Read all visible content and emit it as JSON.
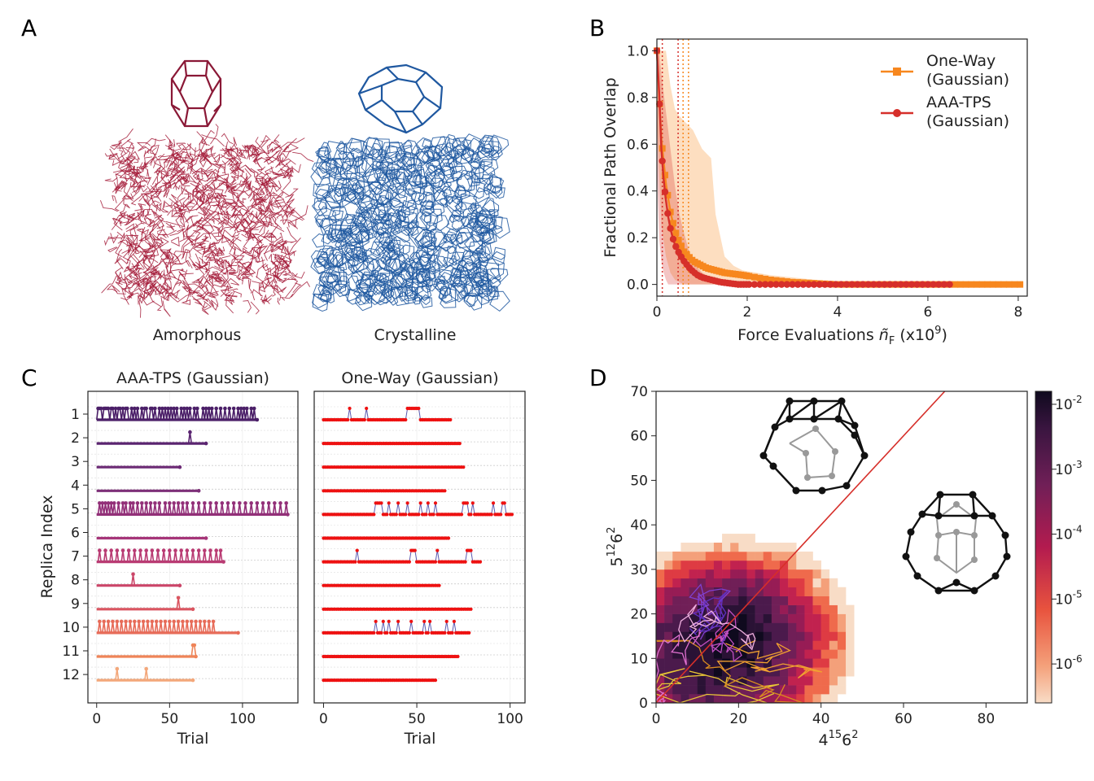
{
  "panels": {
    "A": "A",
    "B": "B",
    "C": "C",
    "D": "D"
  },
  "colors": {
    "amorphous": "#a51c3a",
    "crystalline": "#1f58a0",
    "oneway": "#f7871e",
    "aaa": "#d62f2a",
    "line": "#d62f2a",
    "red_dots": "#ee1111"
  },
  "chart_data": [
    {
      "id": "A",
      "type": "other",
      "labels": {
        "left": "Amorphous",
        "right": "Crystalline"
      }
    },
    {
      "id": "B",
      "type": "line",
      "xlabel_main": "Force Evaluations ",
      "xlabel_sym": "ñ",
      "xlabel_sub": "F",
      "xlabel_unit": " (x10",
      "xlabel_exp": "9",
      "xlabel_close": ")",
      "ylabel": "Fractional Path Overlap",
      "xlim": [
        0,
        8.2
      ],
      "ylim": [
        -0.05,
        1.05
      ],
      "xticks": [
        0,
        2,
        4,
        6,
        8
      ],
      "yticks": [
        0.0,
        0.2,
        0.4,
        0.6,
        0.8,
        1.0
      ],
      "vlines": [
        {
          "x": 0.12,
          "series": "aaa"
        },
        {
          "x": 0.47,
          "series": "aaa"
        },
        {
          "x": 0.58,
          "series": "oneway"
        },
        {
          "x": 0.7,
          "series": "oneway"
        }
      ],
      "series": [
        {
          "key": "oneway",
          "name_line1": "One-Way",
          "name_line2": "(Gaussian)",
          "marker": "square",
          "x": [
            0,
            0.1,
            0.2,
            0.3,
            0.4,
            0.5,
            0.6,
            0.7,
            0.8,
            0.9,
            1.0,
            1.1,
            1.2,
            1.3,
            1.5,
            1.7,
            1.9,
            2.2,
            2.5,
            3.0,
            3.5,
            4,
            5,
            6,
            7,
            8.1
          ],
          "y": [
            1.0,
            0.62,
            0.43,
            0.31,
            0.23,
            0.18,
            0.14,
            0.12,
            0.1,
            0.09,
            0.08,
            0.07,
            0.065,
            0.06,
            0.05,
            0.045,
            0.04,
            0.03,
            0.02,
            0.01,
            0.005,
            0.0,
            0.0,
            0.0,
            0.0,
            0.0
          ],
          "band_upper": [
            1.0,
            1.0,
            1.0,
            0.85,
            0.75,
            0.72,
            0.7,
            0.68,
            0.66,
            0.62,
            0.58,
            0.56,
            0.54,
            0.3,
            0.12,
            0.08,
            0.06,
            0.05,
            0.04,
            0.03,
            0.02,
            0.01,
            0.0,
            0.0,
            0.0,
            0.0
          ],
          "band_lower": [
            0.7,
            0.25,
            0.12,
            0.05,
            0.02,
            0.01,
            0,
            0,
            0,
            0,
            0,
            0,
            0,
            0,
            0,
            0,
            0,
            0,
            0,
            0,
            0,
            0,
            0,
            0,
            0,
            0
          ]
        },
        {
          "key": "aaa",
          "name_line1": "AAA-TPS",
          "name_line2": "(Gaussian)",
          "marker": "circle",
          "x": [
            0,
            0.05,
            0.1,
            0.15,
            0.2,
            0.25,
            0.3,
            0.35,
            0.4,
            0.45,
            0.5,
            0.6,
            0.7,
            0.8,
            0.9,
            1.0,
            1.2,
            1.4,
            1.6,
            1.8,
            2.0,
            2.5,
            3,
            4,
            5,
            6.5
          ],
          "y": [
            1.0,
            0.82,
            0.58,
            0.45,
            0.36,
            0.29,
            0.24,
            0.2,
            0.17,
            0.15,
            0.13,
            0.1,
            0.075,
            0.055,
            0.04,
            0.03,
            0.02,
            0.01,
            0.005,
            0.0,
            0.0,
            0.0,
            0.0,
            0.0,
            0.0,
            0.0
          ],
          "band_upper": [
            1.0,
            1.0,
            0.9,
            0.82,
            0.74,
            0.66,
            0.58,
            0.5,
            0.42,
            0.36,
            0.3,
            0.22,
            0.15,
            0.1,
            0.07,
            0.05,
            0.03,
            0.02,
            0.01,
            0.0,
            0,
            0,
            0,
            0,
            0,
            0
          ],
          "band_lower": [
            0.5,
            0.2,
            0.1,
            0.05,
            0.02,
            0.0,
            0,
            0,
            0,
            0,
            0,
            0,
            0,
            0,
            0,
            0,
            0,
            0,
            0,
            0,
            0,
            0,
            0,
            0,
            0,
            0
          ]
        }
      ]
    },
    {
      "id": "C",
      "type": "scatter",
      "ylabel": "Replica Index",
      "xlabel": "Trial",
      "replicas": [
        "1",
        "2",
        "3",
        "4",
        "5",
        "6",
        "7",
        "8",
        "9",
        "10",
        "11",
        "12"
      ],
      "left": {
        "title": "AAA-TPS (Gaussian)",
        "xlim": [
          -6,
          138
        ],
        "xticks": [
          0,
          50,
          100
        ],
        "lengths": [
          110,
          75,
          57,
          70,
          131,
          75,
          87,
          57,
          66,
          97,
          68,
          66
        ],
        "spikes": [
          [
            1,
            2,
            3,
            5,
            6,
            7,
            8,
            10,
            11,
            13,
            15,
            16,
            18,
            20,
            21,
            24,
            26,
            28,
            31,
            33,
            34,
            37,
            38,
            40,
            43,
            45,
            47,
            49,
            51,
            53,
            55,
            58,
            60,
            62,
            64,
            67,
            69,
            73,
            75,
            77,
            79,
            82,
            85,
            88,
            91,
            94,
            97,
            99,
            101,
            103,
            106,
            108
          ],
          [
            64
          ],
          [],
          [],
          [
            2,
            4,
            6,
            8,
            10,
            12,
            15,
            18,
            20,
            23,
            25,
            28,
            31,
            34,
            37,
            40,
            43,
            47,
            50,
            53,
            56,
            59,
            62,
            66,
            70,
            74,
            78,
            82,
            86,
            90,
            94,
            98,
            102,
            106,
            110,
            114,
            118,
            122,
            126,
            130
          ],
          [],
          [
            2,
            6,
            10,
            14,
            18,
            22,
            26,
            30,
            34,
            38,
            42,
            46,
            50,
            54,
            58,
            62,
            66,
            70,
            74,
            78,
            82,
            85
          ],
          [
            25
          ],
          [
            56
          ],
          [
            2,
            5,
            8,
            11,
            14,
            17,
            20,
            23,
            26,
            29,
            32,
            35,
            38,
            41,
            44,
            47,
            50,
            53,
            56,
            59,
            62,
            65,
            68,
            71,
            74,
            77,
            80
          ],
          [
            66,
            67
          ],
          [
            14,
            34
          ]
        ],
        "colors": [
          "#4b1f68",
          "#5a2470",
          "#6c2a75",
          "#7d2f78",
          "#922f78",
          "#a63579",
          "#b93b73",
          "#cb4669",
          "#da5560",
          "#e76b58",
          "#ef8458",
          "#f3a77a"
        ]
      },
      "right": {
        "title": "One-Way (Gaussian)",
        "xlim": [
          -5,
          108
        ],
        "xticks": [
          0,
          50,
          100
        ],
        "lengths": [
          68,
          73,
          75,
          65,
          101,
          67,
          84,
          62,
          79,
          78,
          72,
          60
        ],
        "spikes": [
          [
            14,
            23,
            45,
            46,
            47,
            48,
            49,
            50,
            51
          ],
          [],
          [],
          [],
          [
            28,
            29,
            30,
            31,
            35,
            40,
            45,
            52,
            56,
            60,
            75,
            76,
            77,
            80,
            91,
            96,
            97
          ],
          [],
          [
            18,
            47,
            48,
            49,
            61,
            77,
            78,
            79
          ],
          [],
          [],
          [
            28,
            32,
            35,
            40,
            47,
            54,
            57,
            66,
            70
          ],
          [],
          []
        ]
      }
    },
    {
      "id": "D",
      "type": "heatmap",
      "xlabel_base": "4",
      "xlabel_sup1": "15",
      "xlabel_mid": "6",
      "xlabel_sup2": "2",
      "ylabel_base": "5",
      "ylabel_sup1": "12",
      "ylabel_mid": "6",
      "ylabel_sup2": "2",
      "xlim": [
        0,
        90
      ],
      "ylim": [
        0,
        70
      ],
      "xticks": [
        0,
        20,
        40,
        60,
        80
      ],
      "yticks": [
        0,
        10,
        20,
        30,
        40,
        50,
        60,
        70
      ],
      "colorbar": {
        "ticks": [
          {
            "exp": "-2",
            "log": -2
          },
          {
            "exp": "-3",
            "log": -3
          },
          {
            "exp": "-4",
            "log": -4
          },
          {
            "exp": "-5",
            "log": -5
          },
          {
            "exp": "-6",
            "log": -6
          }
        ],
        "range_log": [
          -6.6,
          -1.8
        ],
        "base": "10"
      },
      "diagonal": {
        "x": [
          0,
          70
        ],
        "y": [
          0,
          70
        ]
      }
    }
  ]
}
